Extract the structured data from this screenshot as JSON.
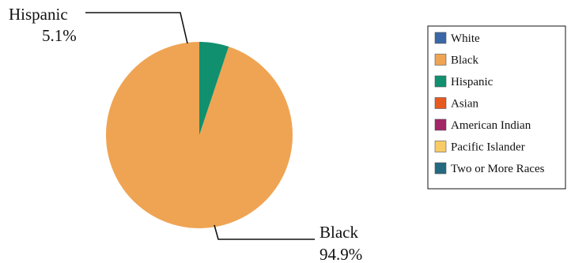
{
  "chart_data": {
    "type": "pie",
    "title": "",
    "slices": [
      {
        "label": "White",
        "value": 0.0,
        "color": "#3a67a5"
      },
      {
        "label": "Black",
        "value": 94.9,
        "color": "#efa453"
      },
      {
        "label": "Hispanic",
        "value": 5.1,
        "color": "#10906f"
      },
      {
        "label": "Asian",
        "value": 0.0,
        "color": "#e8591f"
      },
      {
        "label": "American Indian",
        "value": 0.0,
        "color": "#a32668"
      },
      {
        "label": "Pacific Islander",
        "value": 0.0,
        "color": "#f8cb66"
      },
      {
        "label": "Two or More Races",
        "value": 0.0,
        "color": "#236a80"
      }
    ],
    "callouts": [
      {
        "name": "Hispanic",
        "value_text": "5.1%"
      },
      {
        "name": "Black",
        "value_text": "94.9%"
      }
    ],
    "legend_position": "right"
  }
}
